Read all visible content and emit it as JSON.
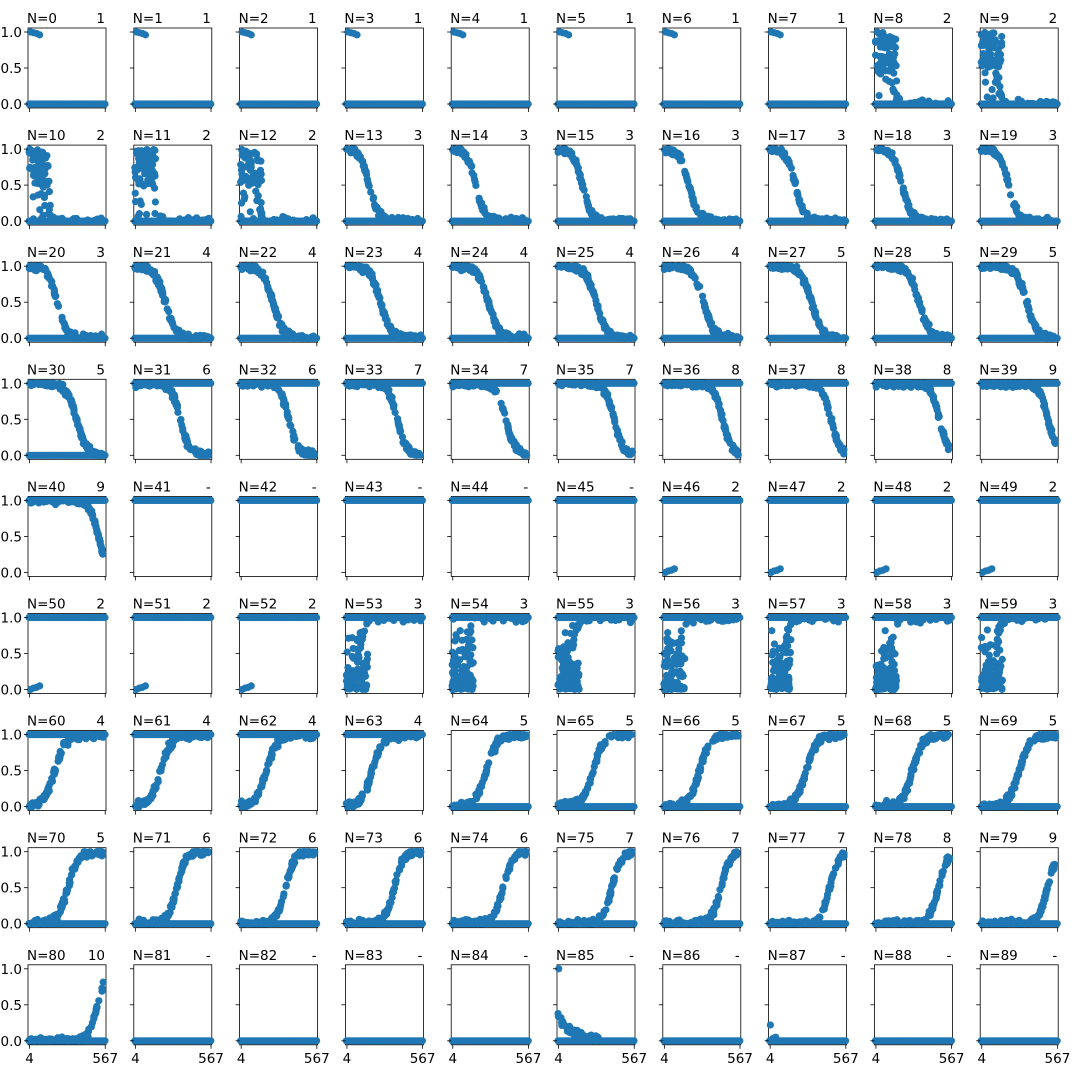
{
  "figure": {
    "type": "scatter-grid",
    "rows": 9,
    "cols": 10,
    "marker_color": "#1f77b4"
  },
  "chart_data": {
    "type": "scatter",
    "xlim": [
      4,
      567
    ],
    "ylim": [
      0.0,
      1.0
    ],
    "x_tick_labels": [
      "4",
      "567"
    ],
    "y_tick_labels": [
      "0.0",
      "0.5",
      "1.0"
    ],
    "grid": false,
    "panels": [
      {
        "title": "N=0",
        "label": "1"
      },
      {
        "title": "N=1",
        "label": "1"
      },
      {
        "title": "N=2",
        "label": "1"
      },
      {
        "title": "N=3",
        "label": "1"
      },
      {
        "title": "N=4",
        "label": "1"
      },
      {
        "title": "N=5",
        "label": "1"
      },
      {
        "title": "N=6",
        "label": "1"
      },
      {
        "title": "N=7",
        "label": "1"
      },
      {
        "title": "N=8",
        "label": "2"
      },
      {
        "title": "N=9",
        "label": "2"
      },
      {
        "title": "N=10",
        "label": "2"
      },
      {
        "title": "N=11",
        "label": "2"
      },
      {
        "title": "N=12",
        "label": "2"
      },
      {
        "title": "N=13",
        "label": "3"
      },
      {
        "title": "N=14",
        "label": "3"
      },
      {
        "title": "N=15",
        "label": "3"
      },
      {
        "title": "N=16",
        "label": "3"
      },
      {
        "title": "N=17",
        "label": "3"
      },
      {
        "title": "N=18",
        "label": "3"
      },
      {
        "title": "N=19",
        "label": "3"
      },
      {
        "title": "N=20",
        "label": "3"
      },
      {
        "title": "N=21",
        "label": "4"
      },
      {
        "title": "N=22",
        "label": "4"
      },
      {
        "title": "N=23",
        "label": "4"
      },
      {
        "title": "N=24",
        "label": "4"
      },
      {
        "title": "N=25",
        "label": "4"
      },
      {
        "title": "N=26",
        "label": "4"
      },
      {
        "title": "N=27",
        "label": "5"
      },
      {
        "title": "N=28",
        "label": "5"
      },
      {
        "title": "N=29",
        "label": "5"
      },
      {
        "title": "N=30",
        "label": "5"
      },
      {
        "title": "N=31",
        "label": "6"
      },
      {
        "title": "N=32",
        "label": "6"
      },
      {
        "title": "N=33",
        "label": "7"
      },
      {
        "title": "N=34",
        "label": "7"
      },
      {
        "title": "N=35",
        "label": "7"
      },
      {
        "title": "N=36",
        "label": "8"
      },
      {
        "title": "N=37",
        "label": "8"
      },
      {
        "title": "N=38",
        "label": "8"
      },
      {
        "title": "N=39",
        "label": "9"
      },
      {
        "title": "N=40",
        "label": "9"
      },
      {
        "title": "N=41",
        "label": "-"
      },
      {
        "title": "N=42",
        "label": "-"
      },
      {
        "title": "N=43",
        "label": "-"
      },
      {
        "title": "N=44",
        "label": "-"
      },
      {
        "title": "N=45",
        "label": "-"
      },
      {
        "title": "N=46",
        "label": "2"
      },
      {
        "title": "N=47",
        "label": "2"
      },
      {
        "title": "N=48",
        "label": "2"
      },
      {
        "title": "N=49",
        "label": "2"
      },
      {
        "title": "N=50",
        "label": "2"
      },
      {
        "title": "N=51",
        "label": "2"
      },
      {
        "title": "N=52",
        "label": "2"
      },
      {
        "title": "N=53",
        "label": "3"
      },
      {
        "title": "N=54",
        "label": "3"
      },
      {
        "title": "N=55",
        "label": "3"
      },
      {
        "title": "N=56",
        "label": "3"
      },
      {
        "title": "N=57",
        "label": "3"
      },
      {
        "title": "N=58",
        "label": "3"
      },
      {
        "title": "N=59",
        "label": "3"
      },
      {
        "title": "N=60",
        "label": "4"
      },
      {
        "title": "N=61",
        "label": "4"
      },
      {
        "title": "N=62",
        "label": "4"
      },
      {
        "title": "N=63",
        "label": "4"
      },
      {
        "title": "N=64",
        "label": "5"
      },
      {
        "title": "N=65",
        "label": "5"
      },
      {
        "title": "N=66",
        "label": "5"
      },
      {
        "title": "N=67",
        "label": "5"
      },
      {
        "title": "N=68",
        "label": "5"
      },
      {
        "title": "N=69",
        "label": "5"
      },
      {
        "title": "N=70",
        "label": "5"
      },
      {
        "title": "N=71",
        "label": "6"
      },
      {
        "title": "N=72",
        "label": "6"
      },
      {
        "title": "N=73",
        "label": "6"
      },
      {
        "title": "N=74",
        "label": "6"
      },
      {
        "title": "N=75",
        "label": "7"
      },
      {
        "title": "N=76",
        "label": "7"
      },
      {
        "title": "N=77",
        "label": "7"
      },
      {
        "title": "N=78",
        "label": "8"
      },
      {
        "title": "N=79",
        "label": "9"
      },
      {
        "title": "N=80",
        "label": "10"
      },
      {
        "title": "N=81",
        "label": "-"
      },
      {
        "title": "N=82",
        "label": "-"
      },
      {
        "title": "N=83",
        "label": "-"
      },
      {
        "title": "N=84",
        "label": "-"
      },
      {
        "title": "N=85",
        "label": "-"
      },
      {
        "title": "N=86",
        "label": "-"
      },
      {
        "title": "N=87",
        "label": "-"
      },
      {
        "title": "N=88",
        "label": "-"
      },
      {
        "title": "N=89",
        "label": "-"
      }
    ]
  }
}
